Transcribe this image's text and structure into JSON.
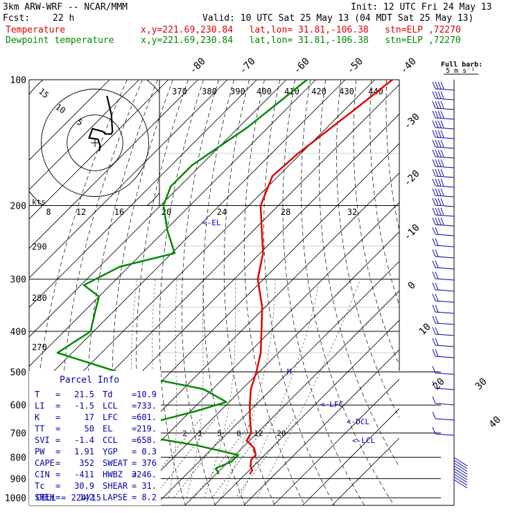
{
  "header": {
    "model": "3km ARW-WRF -- NCAR/MMM",
    "init": "Init: 12 UTC Fri 24 May 13",
    "fcst_label": "Fcst:",
    "fcst_value": "22 h",
    "valid": "Valid: 10 UTC Sat 25 May 13 (04 MDT Sat 25 May 13)",
    "temp_label": "Temperature",
    "dew_label": "Dewpoint temperature",
    "location": "x,y=221.69,230.84   lat,lon= 31.81,-106.38   stn=ELP ,72270"
  },
  "colors": {
    "temperature": "#e00000",
    "dewpoint": "#008800",
    "text": "#000000",
    "label": "#0000aa"
  },
  "barb_legend": {
    "title": "Full barb:",
    "value": "5 m s⁻¹"
  },
  "chart_data": {
    "type": "skew-T log-P sounding",
    "pressure_levels": [
      "100",
      "200",
      "300",
      "400",
      "500",
      "600",
      "700",
      "800",
      "900",
      "1000"
    ],
    "temperature_ticks": [
      "-80",
      "-70",
      "-60",
      "-50",
      "-40",
      "-30",
      "-20",
      "-10",
      "0",
      "10",
      "20",
      "30",
      "40"
    ],
    "theta_labels": [
      "370",
      "380",
      "390",
      "400",
      "410",
      "420",
      "430",
      "440"
    ],
    "hodograph_speed_labels": [
      "8",
      "12",
      "16",
      "20",
      "24",
      "28",
      "32"
    ],
    "hodograph_unit": "kts",
    "hodograph_rings": [
      "5",
      "10",
      "15"
    ],
    "left_axis_labels": [
      "290",
      "280",
      "270"
    ],
    "mixing_ratio_labels": [
      "2",
      "3",
      "5",
      "8",
      "12",
      "20"
    ],
    "annotations": [
      "<-EL",
      "<-LFC",
      "<-DCL",
      "<-LCL",
      "M"
    ],
    "temperature_profile": [
      {
        "p": 100,
        "t": -64
      },
      {
        "p": 120,
        "t": -67
      },
      {
        "p": 150,
        "t": -71
      },
      {
        "p": 170,
        "t": -72
      },
      {
        "p": 200,
        "t": -66
      },
      {
        "p": 230,
        "t": -57
      },
      {
        "p": 260,
        "t": -49
      },
      {
        "p": 300,
        "t": -42
      },
      {
        "p": 350,
        "t": -31
      },
      {
        "p": 400,
        "t": -23
      },
      {
        "p": 450,
        "t": -16
      },
      {
        "p": 500,
        "t": -11
      },
      {
        "p": 550,
        "t": -7
      },
      {
        "p": 600,
        "t": -2
      },
      {
        "p": 650,
        "t": 3
      },
      {
        "p": 700,
        "t": 8
      },
      {
        "p": 730,
        "t": 9
      },
      {
        "p": 760,
        "t": 14
      },
      {
        "p": 790,
        "t": 17
      },
      {
        "p": 810,
        "t": 17
      },
      {
        "p": 840,
        "t": 19
      },
      {
        "p": 860,
        "t": 21
      },
      {
        "p": 878,
        "t": 21.5
      }
    ],
    "dewpoint_profile": [
      {
        "p": 100,
        "t": -93
      },
      {
        "p": 130,
        "t": -97
      },
      {
        "p": 160,
        "t": -103
      },
      {
        "p": 180,
        "t": -103
      },
      {
        "p": 200,
        "t": -99
      },
      {
        "p": 230,
        "t": -89
      },
      {
        "p": 260,
        "t": -79
      },
      {
        "p": 280,
        "t": -93
      },
      {
        "p": 310,
        "t": -99
      },
      {
        "p": 330,
        "t": -90
      },
      {
        "p": 360,
        "t": -86
      },
      {
        "p": 400,
        "t": -81
      },
      {
        "p": 450,
        "t": -85
      },
      {
        "p": 500,
        "t": -58
      },
      {
        "p": 550,
        "t": -23
      },
      {
        "p": 590,
        "t": -11
      },
      {
        "p": 620,
        "t": -18
      },
      {
        "p": 660,
        "t": -29
      },
      {
        "p": 700,
        "t": -35
      },
      {
        "p": 750,
        "t": -6
      },
      {
        "p": 790,
        "t": 11
      },
      {
        "p": 820,
        "t": 11
      },
      {
        "p": 850,
        "t": 8
      },
      {
        "p": 878,
        "t": 10.9
      }
    ],
    "hodograph_trace": [
      {
        "u": 0,
        "v": 0
      },
      {
        "u": 1,
        "v": 4
      },
      {
        "u": -1,
        "v": 9
      },
      {
        "u": -9,
        "v": 10
      },
      {
        "u": -6,
        "v": 17
      },
      {
        "u": 3,
        "v": 15
      },
      {
        "u": 6,
        "v": 13
      },
      {
        "u": 11,
        "v": 13
      },
      {
        "u": 12,
        "v": 15
      },
      {
        "u": 11,
        "v": 28
      },
      {
        "u": 7,
        "v": 42
      }
    ]
  },
  "parcel_info": {
    "title": "Parcel Info",
    "rows": [
      {
        "k1": "T",
        "v1": "21.5",
        "k2": "Td",
        "v2": "10.9"
      },
      {
        "k1": "LI",
        "v1": "-1.5",
        "k2": "LCL",
        "v2": "733."
      },
      {
        "k1": "K",
        "v1": "17",
        "k2": "LFC",
        "v2": "601."
      },
      {
        "k1": "TT",
        "v1": "50",
        "k2": "EL",
        "v2": "219."
      },
      {
        "k1": "SVI",
        "v1": "-1.4",
        "k2": "CCL",
        "v2": "658."
      },
      {
        "k1": "PW",
        "v1": "1.91",
        "k2": "YGP",
        "v2": "0.3"
      },
      {
        "k1": "CAPE",
        "v1": "352",
        "k2": "SWEAT",
        "v2": "376"
      },
      {
        "k1": "CIN",
        "v1": "-411",
        "k2": "HWBZ",
        "v2": "3246."
      },
      {
        "k1": "Tc",
        "v1": "30.9",
        "k2": "SHEAR",
        "v2": "31."
      },
      {
        "k1": "SREH",
        "v1": "142",
        "k2": "LAPSE",
        "v2": "8.2"
      }
    ],
    "cell": "CELL = 224/15"
  }
}
